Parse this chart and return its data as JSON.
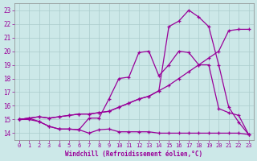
{
  "xlabel": "Windchill (Refroidissement éolien,°C)",
  "background_color": "#cce8e8",
  "grid_color": "#aacccc",
  "line_color": "#990099",
  "xlim": [
    -0.5,
    23.5
  ],
  "ylim": [
    13.5,
    23.5
  ],
  "yticks": [
    14,
    15,
    16,
    17,
    18,
    19,
    20,
    21,
    22,
    23
  ],
  "xticks": [
    0,
    1,
    2,
    3,
    4,
    5,
    6,
    7,
    8,
    9,
    10,
    11,
    12,
    13,
    14,
    15,
    16,
    17,
    18,
    19,
    20,
    21,
    22,
    23
  ],
  "lines": [
    {
      "x": [
        0,
        1,
        2,
        3,
        4,
        5,
        6,
        7,
        8,
        9,
        10,
        11,
        12,
        13,
        14,
        15,
        16,
        17,
        18,
        19,
        20,
        21,
        22,
        23
      ],
      "y": [
        15.0,
        15.0,
        14.85,
        14.5,
        14.3,
        14.3,
        14.25,
        14.0,
        14.25,
        14.3,
        14.1,
        14.1,
        14.1,
        14.1,
        14.0,
        14.0,
        14.0,
        14.0,
        14.0,
        14.0,
        14.0,
        14.0,
        14.0,
        13.9
      ]
    },
    {
      "x": [
        0,
        1,
        2,
        3,
        4,
        5,
        6,
        7,
        8,
        9,
        10,
        11,
        12,
        13,
        14,
        15,
        16,
        17,
        18,
        19,
        20,
        21,
        22,
        23
      ],
      "y": [
        15.0,
        15.1,
        14.85,
        14.5,
        14.3,
        14.3,
        14.25,
        15.1,
        15.1,
        16.5,
        18.0,
        18.1,
        19.9,
        20.0,
        18.2,
        19.0,
        20.0,
        19.9,
        19.0,
        19.0,
        15.8,
        15.5,
        15.3,
        13.9
      ]
    },
    {
      "x": [
        0,
        1,
        2,
        3,
        4,
        5,
        6,
        7,
        8,
        9,
        10,
        11,
        12,
        13,
        14,
        15,
        16,
        17,
        18,
        19,
        20,
        21,
        22,
        23
      ],
      "y": [
        15.0,
        15.1,
        15.2,
        15.1,
        15.2,
        15.3,
        15.4,
        15.4,
        15.5,
        15.6,
        15.9,
        16.2,
        16.5,
        16.7,
        17.1,
        17.5,
        18.0,
        18.5,
        19.0,
        19.5,
        20.0,
        21.5,
        21.6,
        21.6
      ]
    },
    {
      "x": [
        0,
        1,
        2,
        3,
        4,
        5,
        6,
        7,
        8,
        9,
        10,
        11,
        12,
        13,
        14,
        15,
        16,
        17,
        18,
        19,
        20,
        21,
        22,
        23
      ],
      "y": [
        15.0,
        15.1,
        15.2,
        15.1,
        15.2,
        15.3,
        15.4,
        15.4,
        15.5,
        15.6,
        15.9,
        16.2,
        16.5,
        16.7,
        17.1,
        21.8,
        22.2,
        23.0,
        22.5,
        21.8,
        19.0,
        15.9,
        14.8,
        13.9
      ]
    }
  ]
}
